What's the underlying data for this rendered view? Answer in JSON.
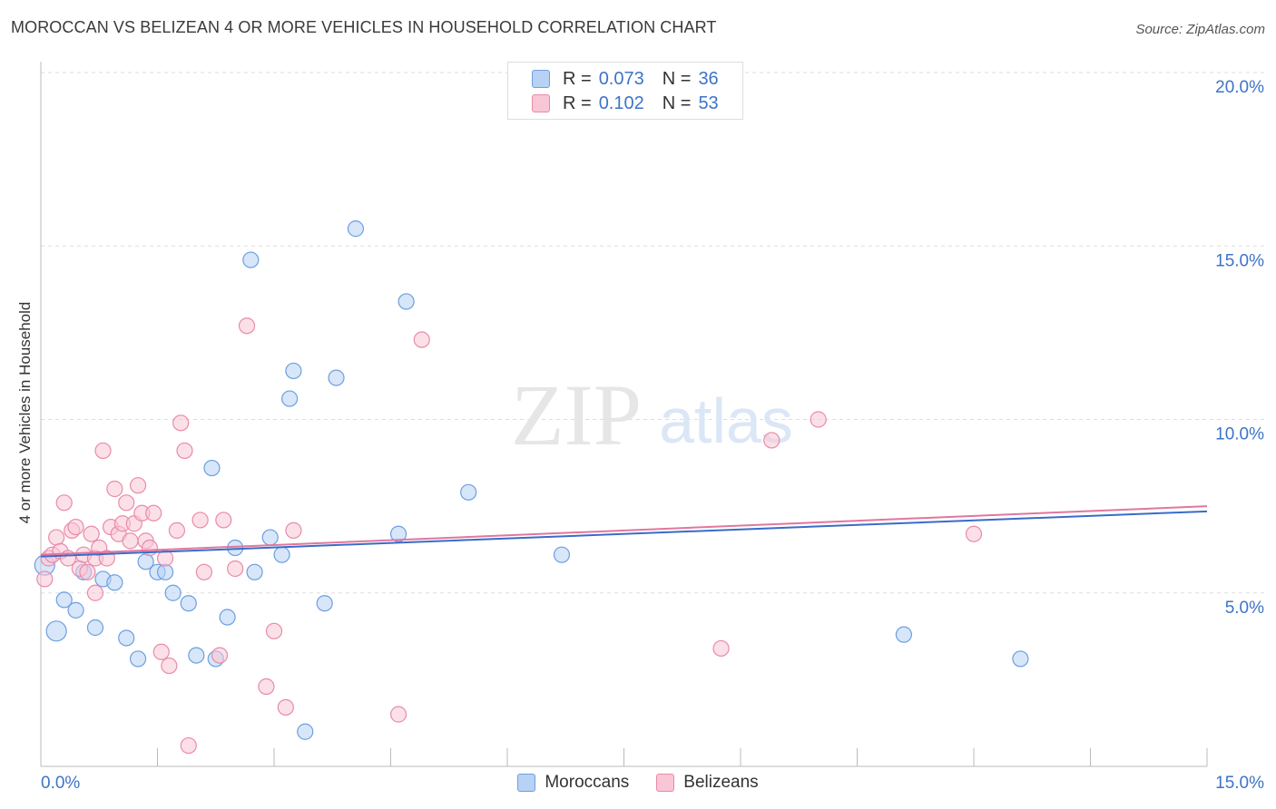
{
  "title": "MOROCCAN VS BELIZEAN 4 OR MORE VEHICLES IN HOUSEHOLD CORRELATION CHART",
  "source": "Source: ZipAtlas.com",
  "watermark": {
    "zip": "ZIP",
    "atlas": "atlas"
  },
  "legend": {
    "rows": [
      {
        "r_label": "R =",
        "r_value": "0.073",
        "n_label": "N =",
        "n_value": "36"
      },
      {
        "r_label": "R =",
        "r_value": "0.102",
        "n_label": "N =",
        "n_value": "53"
      }
    ]
  },
  "colors": {
    "moroccan_fill": "#b7d2f4",
    "moroccan_stroke": "#6d9fdf",
    "moroccan_line": "#3a6bc9",
    "belizean_fill": "#f9c6d6",
    "belizean_stroke": "#e98aa9",
    "belizean_line": "#e0779e",
    "tick_label": "#3d74c7",
    "grid": "#dddddd"
  },
  "chart_data": {
    "type": "scatter",
    "title": "MOROCCAN VS BELIZEAN 4 OR MORE VEHICLES IN HOUSEHOLD CORRELATION CHART",
    "xlabel": "",
    "ylabel": "4 or more Vehicles in Household",
    "xlim": [
      0,
      15
    ],
    "ylim": [
      0,
      20
    ],
    "x_tick_labels": [
      "0.0%",
      "15.0%"
    ],
    "y_ticks": [
      5,
      10,
      15,
      20
    ],
    "y_tick_labels": [
      "5.0%",
      "10.0%",
      "15.0%",
      "20.0%"
    ],
    "legend_labels": [
      "Moroccans",
      "Belizeans"
    ],
    "series": [
      {
        "name": "Moroccans",
        "r": 0.073,
        "n": 36,
        "trend": [
          [
            0,
            6.05
          ],
          [
            15,
            7.35
          ]
        ],
        "points": [
          [
            0.05,
            5.8
          ],
          [
            0.2,
            3.9
          ],
          [
            0.3,
            4.8
          ],
          [
            0.45,
            4.5
          ],
          [
            0.55,
            5.6
          ],
          [
            0.7,
            4.0
          ],
          [
            0.8,
            5.4
          ],
          [
            0.95,
            5.3
          ],
          [
            1.1,
            3.7
          ],
          [
            1.25,
            3.1
          ],
          [
            1.35,
            5.9
          ],
          [
            1.5,
            5.6
          ],
          [
            1.6,
            5.6
          ],
          [
            1.7,
            5.0
          ],
          [
            1.9,
            4.7
          ],
          [
            2.0,
            3.2
          ],
          [
            2.2,
            8.6
          ],
          [
            2.25,
            3.1
          ],
          [
            2.4,
            4.3
          ],
          [
            2.5,
            6.3
          ],
          [
            2.7,
            14.6
          ],
          [
            2.75,
            5.6
          ],
          [
            2.95,
            6.6
          ],
          [
            3.1,
            6.1
          ],
          [
            3.2,
            10.6
          ],
          [
            3.25,
            11.4
          ],
          [
            3.4,
            1.0
          ],
          [
            3.65,
            4.7
          ],
          [
            3.8,
            11.2
          ],
          [
            4.05,
            15.5
          ],
          [
            4.6,
            6.7
          ],
          [
            4.7,
            13.4
          ],
          [
            5.5,
            7.9
          ],
          [
            6.7,
            6.1
          ],
          [
            11.1,
            3.8
          ],
          [
            12.6,
            3.1
          ]
        ]
      },
      {
        "name": "Belizeans",
        "r": 0.102,
        "n": 53,
        "trend": [
          [
            0,
            6.1
          ],
          [
            15,
            7.5
          ]
        ],
        "points": [
          [
            0.05,
            5.4
          ],
          [
            0.1,
            6.0
          ],
          [
            0.15,
            6.1
          ],
          [
            0.2,
            6.6
          ],
          [
            0.25,
            6.2
          ],
          [
            0.3,
            7.6
          ],
          [
            0.35,
            6.0
          ],
          [
            0.4,
            6.8
          ],
          [
            0.45,
            6.9
          ],
          [
            0.5,
            5.7
          ],
          [
            0.55,
            6.1
          ],
          [
            0.6,
            5.6
          ],
          [
            0.65,
            6.7
          ],
          [
            0.7,
            6.0
          ],
          [
            0.7,
            5.0
          ],
          [
            0.75,
            6.3
          ],
          [
            0.8,
            9.1
          ],
          [
            0.85,
            6.0
          ],
          [
            0.9,
            6.9
          ],
          [
            0.95,
            8.0
          ],
          [
            1.0,
            6.7
          ],
          [
            1.05,
            7.0
          ],
          [
            1.1,
            7.6
          ],
          [
            1.15,
            6.5
          ],
          [
            1.2,
            7.0
          ],
          [
            1.25,
            8.1
          ],
          [
            1.3,
            7.3
          ],
          [
            1.35,
            6.5
          ],
          [
            1.4,
            6.3
          ],
          [
            1.45,
            7.3
          ],
          [
            1.55,
            3.3
          ],
          [
            1.6,
            6.0
          ],
          [
            1.65,
            2.9
          ],
          [
            1.75,
            6.8
          ],
          [
            1.8,
            9.9
          ],
          [
            1.85,
            9.1
          ],
          [
            1.9,
            0.6
          ],
          [
            2.05,
            7.1
          ],
          [
            2.1,
            5.6
          ],
          [
            2.3,
            3.2
          ],
          [
            2.35,
            7.1
          ],
          [
            2.5,
            5.7
          ],
          [
            2.65,
            12.7
          ],
          [
            2.9,
            2.3
          ],
          [
            3.0,
            3.9
          ],
          [
            3.15,
            1.7
          ],
          [
            3.25,
            6.8
          ],
          [
            4.6,
            1.5
          ],
          [
            4.9,
            12.3
          ],
          [
            8.75,
            3.4
          ],
          [
            9.4,
            9.4
          ],
          [
            10.0,
            10.0
          ],
          [
            12.0,
            6.7
          ]
        ]
      }
    ]
  }
}
